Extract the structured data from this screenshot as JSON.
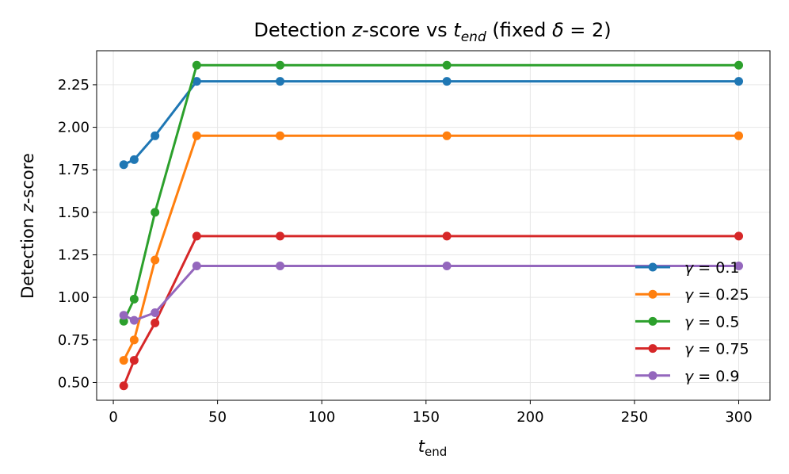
{
  "chart_data": {
    "type": "line",
    "title": {
      "prefix": "Detection ",
      "var": "z",
      "middle": "-score vs ",
      "tvar": "t",
      "tsub": "end",
      "suffix": " (fixed ",
      "delta": "δ",
      "eq": " = 2)"
    },
    "xlabel": {
      "var": "t",
      "sub": "end"
    },
    "ylabel": {
      "prefix": "Detection ",
      "var": "z",
      "suffix": "-score"
    },
    "x": [
      5,
      10,
      20,
      40,
      80,
      160,
      300
    ],
    "xlim": [
      -8,
      315
    ],
    "ylim": [
      0.395,
      2.45
    ],
    "xticks": [
      0,
      50,
      100,
      150,
      200,
      250,
      300
    ],
    "yticks": [
      0.5,
      0.75,
      1.0,
      1.25,
      1.5,
      1.75,
      2.0,
      2.25
    ],
    "ytick_labels": [
      "0.50",
      "0.75",
      "1.00",
      "1.25",
      "1.50",
      "1.75",
      "2.00",
      "2.25"
    ],
    "grid": true,
    "legend_position": "lower-right",
    "series": [
      {
        "name": "0.1",
        "label_var": "γ",
        "color": "#1f77b4",
        "values": [
          1.78,
          1.81,
          1.95,
          2.27,
          2.27,
          2.27,
          2.27
        ]
      },
      {
        "name": "0.25",
        "label_var": "γ",
        "color": "#ff7f0e",
        "values": [
          0.63,
          0.75,
          1.22,
          1.95,
          1.95,
          1.95,
          1.95
        ]
      },
      {
        "name": "0.5",
        "label_var": "γ",
        "color": "#2ca02c",
        "values": [
          0.86,
          0.99,
          1.5,
          2.365,
          2.365,
          2.365,
          2.365
        ]
      },
      {
        "name": "0.75",
        "label_var": "γ",
        "color": "#d62728",
        "values": [
          0.48,
          0.63,
          0.85,
          1.36,
          1.36,
          1.36,
          1.36
        ]
      },
      {
        "name": "0.9",
        "label_var": "γ",
        "color": "#9467bd",
        "values": [
          0.895,
          0.865,
          0.91,
          1.185,
          1.185,
          1.185,
          1.185
        ]
      }
    ]
  }
}
